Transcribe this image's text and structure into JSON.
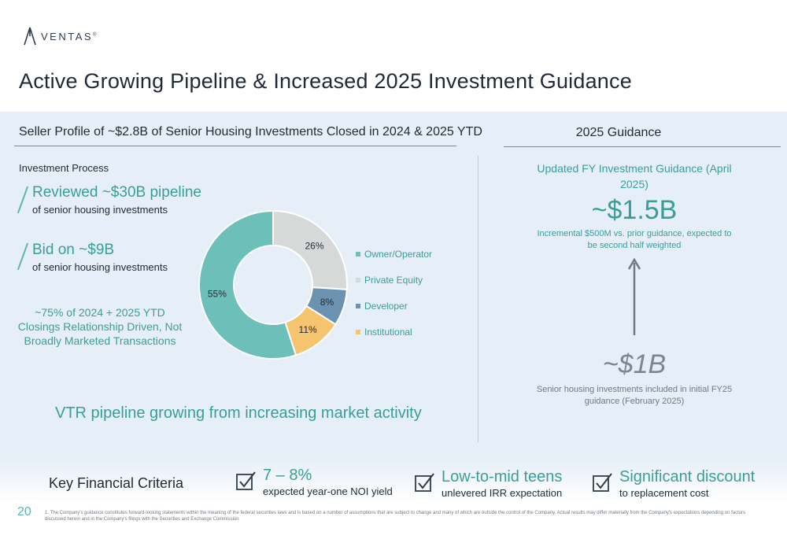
{
  "brand": {
    "name": "VENTAS",
    "trademark": "®",
    "accent": "#3a9e98"
  },
  "title": "Active Growing Pipeline & Increased 2025 Investment Guidance",
  "left_section": {
    "heading": "Seller Profile of ~$2.8B of Senior Housing Investments Closed in 2024 & 2025 YTD",
    "process_heading": "Investment Process",
    "steps": [
      {
        "headline": "Reviewed ~$30B pipeline",
        "detail": "of senior housing investments"
      },
      {
        "headline": "Bid on ~$9B",
        "detail": "of senior housing investments"
      }
    ],
    "note": "~75% of 2024 + 2025 YTD Closings Relationship Driven, Not Broadly Marketed Transactions",
    "pipeline_note": "VTR pipeline growing from increasing market activity"
  },
  "chart_data": {
    "type": "pie",
    "donut": true,
    "categories": [
      "Owner/Operator",
      "Private Equity",
      "Developer",
      "Institutional"
    ],
    "values": [
      55,
      26,
      8,
      11
    ],
    "labels": [
      "55%",
      "26%",
      "8%",
      "11%"
    ],
    "colors": [
      "#6dbfba",
      "#d7d9d8",
      "#6b92b0",
      "#f6c36e"
    ],
    "legend_position": "right"
  },
  "right_section": {
    "heading": "2025 Guidance",
    "updated_title": "Updated FY Investment Guidance (April 2025)",
    "updated_amount": "~$1.5B",
    "updated_note": "Incremental $500M vs. prior guidance, expected to be second half weighted",
    "prior_amount": "~$1B",
    "prior_note": "Senior housing investments included in initial FY25 guidance (February 2025)",
    "arrow_icon": "arrow-up-icon"
  },
  "criteria": {
    "heading": "Key Financial Criteria",
    "items": [
      {
        "value": "7 – 8%",
        "desc": "expected year-one NOI yield",
        "icon": "checkbox-check-icon"
      },
      {
        "value": "Low-to-mid teens",
        "desc": "unlevered IRR expectation",
        "icon": "checkbox-check-icon"
      },
      {
        "value": "Significant discount",
        "desc": "to replacement cost",
        "icon": "checkbox-check-icon"
      }
    ]
  },
  "page_number": "20",
  "footnote": "1. The Company's guidance constitutes forward-looking statements within the meaning of the federal securities laws and is based on a number of assumptions that are subject to change and many of which are outside the control of the Company. Actual results may differ materially from the Company's expectations depending on factors discussed herein and in the Company's filings with the Securities and Exchange Commission"
}
